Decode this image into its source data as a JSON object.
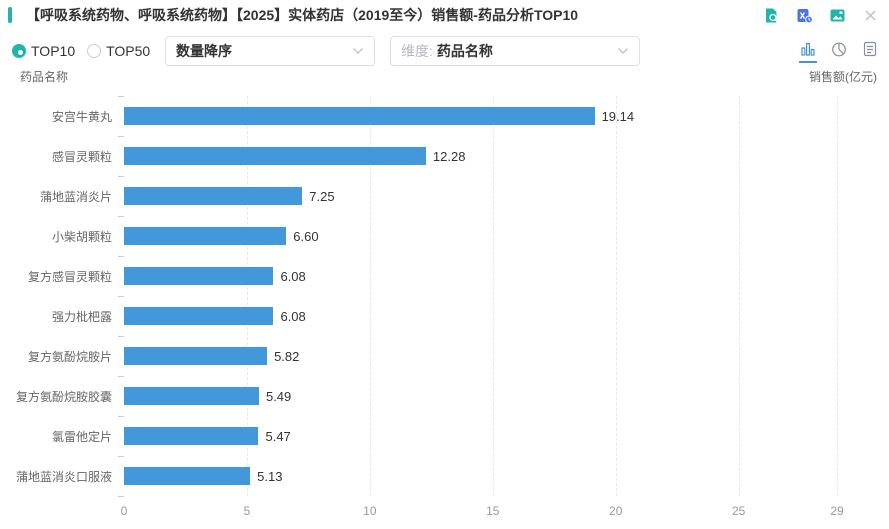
{
  "header": {
    "title": "【呼吸系统药物、呼吸系统药物】【2025】实体药店（2019至今）销售额-药品分析TOP10",
    "action_icons": [
      "report-search-icon",
      "excel-export-icon",
      "save-image-icon",
      "close-icon"
    ]
  },
  "controls": {
    "radios": [
      {
        "label": "TOP10",
        "selected": true
      },
      {
        "label": "TOP50",
        "selected": false
      }
    ],
    "sort_select": {
      "value": "数量降序"
    },
    "dimension_select": {
      "prefix": "维度:",
      "value": "药品名称"
    },
    "view_switcher": {
      "options": [
        "bar-chart",
        "pie-chart",
        "table"
      ],
      "active": "bar-chart"
    }
  },
  "chart_data": {
    "type": "bar",
    "orientation": "horizontal",
    "ylabel": "药品名称",
    "xlabel": "销售额(亿元)",
    "categories": [
      "安宫牛黄丸",
      "感冒灵颗粒",
      "蒲地蓝消炎片",
      "小柴胡颗粒",
      "复方感冒灵颗粒",
      "强力枇杷露",
      "复方氨酚烷胺片",
      "复方氨酚烷胺胶囊",
      "氯雷他定片",
      "蒲地蓝消炎口服液"
    ],
    "values": [
      19.14,
      12.28,
      7.25,
      6.6,
      6.08,
      6.08,
      5.82,
      5.49,
      5.47,
      5.13
    ],
    "value_labels": [
      "19.14",
      "12.28",
      "7.25",
      "6.60",
      "6.08",
      "6.08",
      "5.82",
      "5.49",
      "5.47",
      "5.13"
    ],
    "xlim": [
      0,
      29
    ],
    "xticks": [
      0,
      5,
      10,
      15,
      20,
      25,
      29
    ],
    "grid": "dashed-vertical",
    "bar_color": "#4398db"
  },
  "colors": {
    "accent_teal": "#1fb5ad",
    "bar_blue": "#4398db",
    "active_view_blue": "#4a90d9",
    "excel_blue": "#4d73e8"
  }
}
